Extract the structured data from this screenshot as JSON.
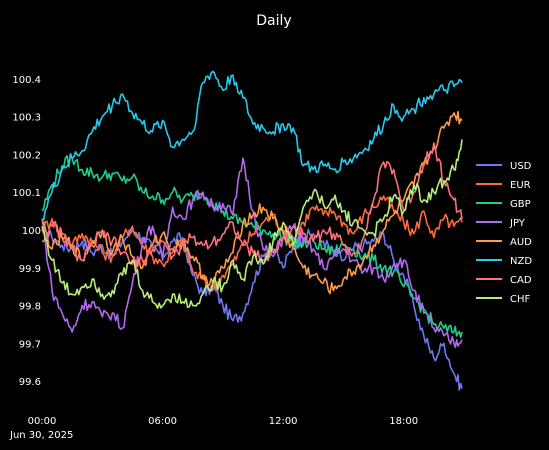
{
  "chart_data": {
    "type": "line",
    "title": "Daily",
    "xlabel": "",
    "ylabel": "",
    "x_ticks": [
      "00:00",
      "06:00",
      "12:00",
      "18:00"
    ],
    "x_tick_hours": [
      0,
      6,
      12,
      18
    ],
    "x_date_label": "Jun 30, 2025",
    "x_range_hours": [
      0,
      20.9
    ],
    "y_ticks": [
      "99.6",
      "99.7",
      "99.8",
      "99.9",
      "100",
      "100.1",
      "100.2",
      "100.3",
      "100.4"
    ],
    "y_tick_values": [
      99.6,
      99.7,
      99.8,
      99.9,
      100.0,
      100.1,
      100.2,
      100.3,
      100.4
    ],
    "ylim": [
      99.55,
      100.45
    ],
    "grid": false,
    "legend_position": "right",
    "x": [
      0,
      0.5,
      1,
      1.5,
      2,
      2.5,
      3,
      3.5,
      4,
      4.5,
      5,
      5.5,
      6,
      6.5,
      7,
      7.5,
      8,
      8.5,
      9,
      9.5,
      10,
      10.5,
      11,
      11.5,
      12,
      12.5,
      13,
      13.5,
      14,
      14.5,
      15,
      15.5,
      16,
      16.5,
      17,
      17.5,
      18,
      18.5,
      19,
      19.5,
      20,
      20.5,
      20.9
    ],
    "series": [
      {
        "name": "USD",
        "color": "#6f78f0",
        "values": [
          100.0,
          99.98,
          99.96,
          99.95,
          99.97,
          99.94,
          99.96,
          99.93,
          99.97,
          100.0,
          99.98,
          99.95,
          99.93,
          99.97,
          99.98,
          99.88,
          99.83,
          99.85,
          99.8,
          99.76,
          99.78,
          99.86,
          99.93,
          99.95,
          99.9,
          99.96,
          99.98,
          99.99,
          99.97,
          99.94,
          99.92,
          99.95,
          99.96,
          99.97,
          99.99,
          99.92,
          99.88,
          99.8,
          99.72,
          99.66,
          99.7,
          99.62,
          99.58
        ]
      },
      {
        "name": "EUR",
        "color": "#ff6a3d",
        "values": [
          100.0,
          100.03,
          99.98,
          99.96,
          99.99,
          99.97,
          99.94,
          99.93,
          99.98,
          100.01,
          99.96,
          99.93,
          99.91,
          99.94,
          99.97,
          99.89,
          99.87,
          99.84,
          99.88,
          99.91,
          99.96,
          99.99,
          100.02,
          100.04,
          100.0,
          99.98,
          100.02,
          100.06,
          100.04,
          100.05,
          100.02,
          99.99,
          100.04,
          100.06,
          100.09,
          100.05,
          100.02,
          99.99,
          100.05,
          99.98,
          100.03,
          100.01,
          100.02
        ]
      },
      {
        "name": "GBP",
        "color": "#1dcf8a",
        "values": [
          100.05,
          100.12,
          100.17,
          100.19,
          100.16,
          100.15,
          100.14,
          100.15,
          100.13,
          100.14,
          100.1,
          100.09,
          100.08,
          100.1,
          100.08,
          100.09,
          100.1,
          100.07,
          100.05,
          100.03,
          100.02,
          100.01,
          100.0,
          99.99,
          99.98,
          99.97,
          99.96,
          99.97,
          99.95,
          99.94,
          99.96,
          99.95,
          99.93,
          99.92,
          99.9,
          99.89,
          99.85,
          99.82,
          99.79,
          99.75,
          99.74,
          99.73,
          99.73
        ]
      },
      {
        "name": "JPY",
        "color": "#b069f0",
        "values": [
          100.03,
          99.84,
          99.78,
          99.73,
          99.8,
          99.81,
          99.77,
          99.78,
          99.74,
          99.86,
          99.97,
          100.01,
          99.92,
          100.06,
          100.03,
          100.08,
          100.1,
          100.06,
          100.07,
          100.04,
          100.19,
          100.05,
          99.95,
          99.93,
          99.98,
          100.01,
          99.97,
          99.95,
          99.9,
          99.93,
          99.95,
          99.92,
          99.89,
          99.9,
          99.87,
          99.91,
          99.92,
          99.84,
          99.78,
          99.74,
          99.72,
          99.7,
          99.71
        ]
      },
      {
        "name": "AUD",
        "color": "#ff9a4a",
        "values": [
          100.02,
          99.95,
          99.98,
          99.96,
          99.92,
          99.97,
          100.0,
          99.94,
          99.98,
          99.93,
          99.9,
          99.96,
          99.99,
          99.95,
          99.97,
          99.93,
          99.88,
          99.86,
          99.9,
          99.94,
          100.02,
          100.04,
          100.06,
          100.03,
          99.99,
          99.95,
          99.9,
          99.88,
          99.86,
          99.84,
          99.87,
          99.89,
          99.92,
          99.96,
          100.0,
          100.04,
          100.08,
          100.12,
          100.17,
          100.22,
          100.27,
          100.31,
          100.29
        ]
      },
      {
        "name": "NZD",
        "color": "#29c9ec",
        "values": [
          100.03,
          100.1,
          100.16,
          100.19,
          100.21,
          100.26,
          100.3,
          100.33,
          100.36,
          100.31,
          100.28,
          100.26,
          100.29,
          100.22,
          100.24,
          100.26,
          100.39,
          100.42,
          100.37,
          100.41,
          100.35,
          100.28,
          100.27,
          100.26,
          100.28,
          100.27,
          100.17,
          100.16,
          100.17,
          100.16,
          100.18,
          100.19,
          100.21,
          100.24,
          100.28,
          100.33,
          100.3,
          100.32,
          100.35,
          100.36,
          100.37,
          100.38,
          100.39
        ]
      },
      {
        "name": "CAD",
        "color": "#ff6f7a",
        "values": [
          99.97,
          100.01,
          99.99,
          99.95,
          99.92,
          99.96,
          99.99,
          99.97,
          99.94,
          99.91,
          99.92,
          99.95,
          99.97,
          99.93,
          99.96,
          99.98,
          99.96,
          99.97,
          99.99,
          100.02,
          99.96,
          99.94,
          99.92,
          99.94,
          99.98,
          100.01,
          99.99,
          99.97,
          100.0,
          99.99,
          99.96,
          99.94,
          99.98,
          100.08,
          100.18,
          100.16,
          100.05,
          100.1,
          100.18,
          100.23,
          100.13,
          100.08,
          100.03
        ]
      },
      {
        "name": "CHF",
        "color": "#b8ec7a",
        "values": [
          100.01,
          99.92,
          99.86,
          99.83,
          99.85,
          99.87,
          99.83,
          99.84,
          99.88,
          99.92,
          99.84,
          99.81,
          99.8,
          99.83,
          99.81,
          99.8,
          99.83,
          99.86,
          99.85,
          99.92,
          99.87,
          99.93,
          99.91,
          99.97,
          100.02,
          99.96,
          100.06,
          100.1,
          100.07,
          100.08,
          100.05,
          100.02,
          100.0,
          99.99,
          100.03,
          100.09,
          100.05,
          100.12,
          100.08,
          100.1,
          100.13,
          100.16,
          100.24
        ]
      }
    ]
  }
}
